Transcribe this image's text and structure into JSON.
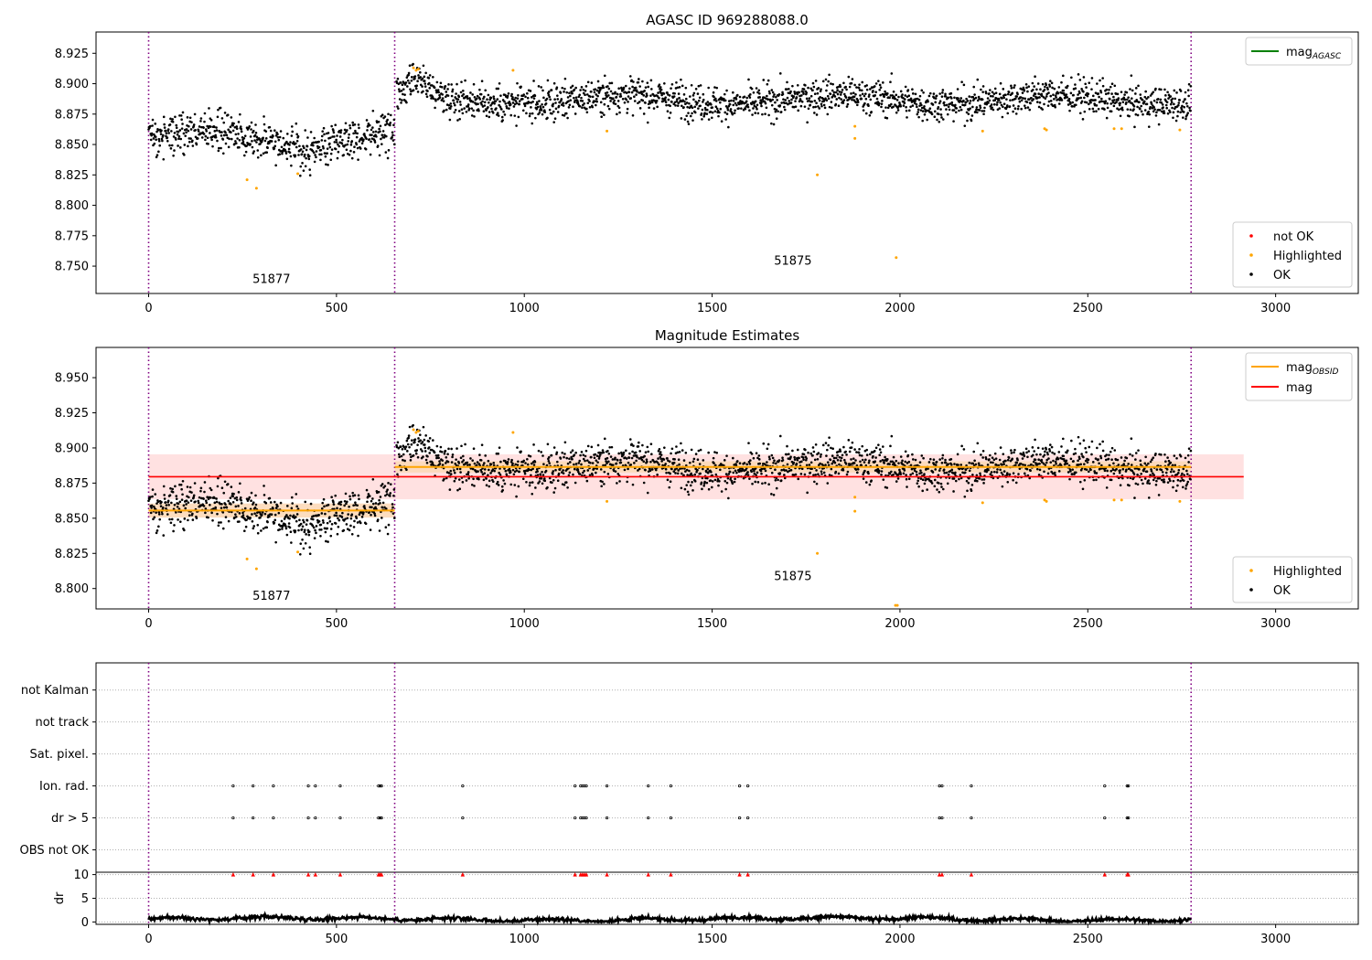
{
  "figure": {
    "title_top": "AGASC ID 969288088.0",
    "title_mid": "Magnitude Estimates"
  },
  "colors": {
    "ok": "#000000",
    "highlighted": "#ffa500",
    "not_ok": "#ff0000",
    "mag_agasc": "#008000",
    "mag_obsid": "#ffa500",
    "mag": "#ff0000",
    "obs_boundary": "#800080",
    "mag_band": "#ffdede",
    "obsid_band": "#fcd9b8"
  },
  "chart_data": [
    {
      "type": "scatter",
      "name": "top",
      "title": "AGASC ID 969288088.0",
      "xlim": [
        -140,
        3220
      ],
      "ylim": [
        8.7275,
        8.9425
      ],
      "xticks": [
        0,
        500,
        1000,
        1500,
        2000,
        2500,
        3000
      ],
      "yticks": [
        8.75,
        8.775,
        8.8,
        8.825,
        8.85,
        8.875,
        8.9,
        8.925
      ],
      "obs_boundaries": [
        0,
        655,
        2775
      ],
      "obsids": [
        {
          "label": "51877",
          "x": 327,
          "y": 8.736
        },
        {
          "label": "51875",
          "x": 1715,
          "y": 8.751
        }
      ],
      "segments": [
        {
          "x0": 0,
          "x1": 655,
          "mean": 8.857,
          "sd": 0.008,
          "dips": [
            {
              "x": 420,
              "w": 60,
              "d": -0.01
            }
          ]
        },
        {
          "x0": 660,
          "x1": 2775,
          "mean": 8.887,
          "sd": 0.007,
          "dips": [
            {
              "x": 720,
              "w": 40,
              "d": 0.01
            }
          ]
        }
      ],
      "highlighted_points": [
        {
          "x": 262,
          "y": 8.821
        },
        {
          "x": 287,
          "y": 8.814
        },
        {
          "x": 397,
          "y": 8.826
        },
        {
          "x": 705,
          "y": 8.913
        },
        {
          "x": 712,
          "y": 8.911
        },
        {
          "x": 718,
          "y": 8.912
        },
        {
          "x": 970,
          "y": 8.911
        },
        {
          "x": 1220,
          "y": 8.861
        },
        {
          "x": 1780,
          "y": 8.825
        },
        {
          "x": 1880,
          "y": 8.855
        },
        {
          "x": 1880,
          "y": 8.865
        },
        {
          "x": 1990,
          "y": 8.757
        },
        {
          "x": 2220,
          "y": 8.861
        },
        {
          "x": 2385,
          "y": 8.863
        },
        {
          "x": 2390,
          "y": 8.862
        },
        {
          "x": 2570,
          "y": 8.863
        },
        {
          "x": 2590,
          "y": 8.863
        },
        {
          "x": 2745,
          "y": 8.862
        }
      ],
      "line_legend": [
        {
          "label": "mag",
          "sub": "AGASC",
          "color": "#008000"
        }
      ],
      "marker_legend": [
        {
          "label": "not OK",
          "color": "#ff0000"
        },
        {
          "label": "Highlighted",
          "color": "#ffa500"
        },
        {
          "label": "OK",
          "color": "#000000"
        }
      ]
    },
    {
      "type": "scatter",
      "name": "middle",
      "title": "Magnitude Estimates",
      "xlim": [
        -140,
        3220
      ],
      "ylim": [
        8.7855,
        8.9715
      ],
      "xticks": [
        0,
        500,
        1000,
        1500,
        2000,
        2500,
        3000
      ],
      "yticks": [
        8.8,
        8.825,
        8.85,
        8.875,
        8.9,
        8.925,
        8.95
      ],
      "obs_boundaries": [
        0,
        655,
        2775
      ],
      "obsids": [
        {
          "label": "51877",
          "x": 327,
          "y": 8.792
        },
        {
          "label": "51875",
          "x": 1715,
          "y": 8.806
        }
      ],
      "mag": {
        "value": 8.8795,
        "band": [
          8.8635,
          8.8955
        ],
        "x": [
          0,
          2915
        ]
      },
      "mag_obsid": [
        {
          "x0": 0,
          "x1": 655,
          "value": 8.8555,
          "band": [
            8.8505,
            8.8605
          ]
        },
        {
          "x0": 655,
          "x1": 2775,
          "value": 8.8865,
          "band": [
            8.8825,
            8.8905
          ]
        }
      ],
      "highlighted_points": [
        {
          "x": 262,
          "y": 8.821
        },
        {
          "x": 287,
          "y": 8.814
        },
        {
          "x": 397,
          "y": 8.826
        },
        {
          "x": 705,
          "y": 8.913
        },
        {
          "x": 712,
          "y": 8.911
        },
        {
          "x": 718,
          "y": 8.912
        },
        {
          "x": 970,
          "y": 8.911
        },
        {
          "x": 1220,
          "y": 8.862
        },
        {
          "x": 1780,
          "y": 8.825
        },
        {
          "x": 1880,
          "y": 8.855
        },
        {
          "x": 1880,
          "y": 8.865
        },
        {
          "x": 1988,
          "y": 8.788
        },
        {
          "x": 1993,
          "y": 8.788
        },
        {
          "x": 2220,
          "y": 8.861
        },
        {
          "x": 2385,
          "y": 8.863
        },
        {
          "x": 2390,
          "y": 8.862
        },
        {
          "x": 2570,
          "y": 8.863
        },
        {
          "x": 2590,
          "y": 8.863
        },
        {
          "x": 2745,
          "y": 8.862
        }
      ],
      "line_legend": [
        {
          "label": "mag",
          "sub": "OBSID",
          "color": "#ffa500"
        },
        {
          "label": "mag",
          "sub": "",
          "color": "#ff0000"
        }
      ],
      "marker_legend": [
        {
          "label": "Highlighted",
          "color": "#ffa500"
        },
        {
          "label": "OK",
          "color": "#000000"
        }
      ]
    },
    {
      "type": "scatter",
      "name": "flags",
      "xlim": [
        -140,
        3220
      ],
      "obs_boundaries": [
        0,
        655,
        2775
      ],
      "categories": [
        "OBS not OK",
        "dr > 5",
        "Ion. rad.",
        "Sat. pixel.",
        "not track",
        "not Kalman"
      ],
      "flag_x": [
        225,
        278,
        332,
        425,
        444,
        510,
        612,
        616,
        620,
        836,
        1135,
        1150,
        1155,
        1160,
        1165,
        1220,
        1330,
        1390,
        1573,
        1595,
        2105,
        2112,
        2190,
        2545,
        2605,
        2608
      ],
      "flagged_rows": [
        "dr > 5",
        "Ion. rad."
      ]
    },
    {
      "type": "line",
      "name": "dr",
      "ylabel": "dr",
      "ylim": [
        -0.5,
        10.5
      ],
      "yticks": [
        0,
        5,
        10
      ],
      "xticks": [
        0,
        500,
        1000,
        1500,
        2000,
        2500,
        3000
      ],
      "xlim": [
        -140,
        3220
      ],
      "obs_boundaries": [
        0,
        655,
        2775
      ],
      "range": [
        0,
        2775
      ],
      "baseline": 0.6,
      "amplitude": 0.45,
      "flag_marker_y": 10
    }
  ]
}
